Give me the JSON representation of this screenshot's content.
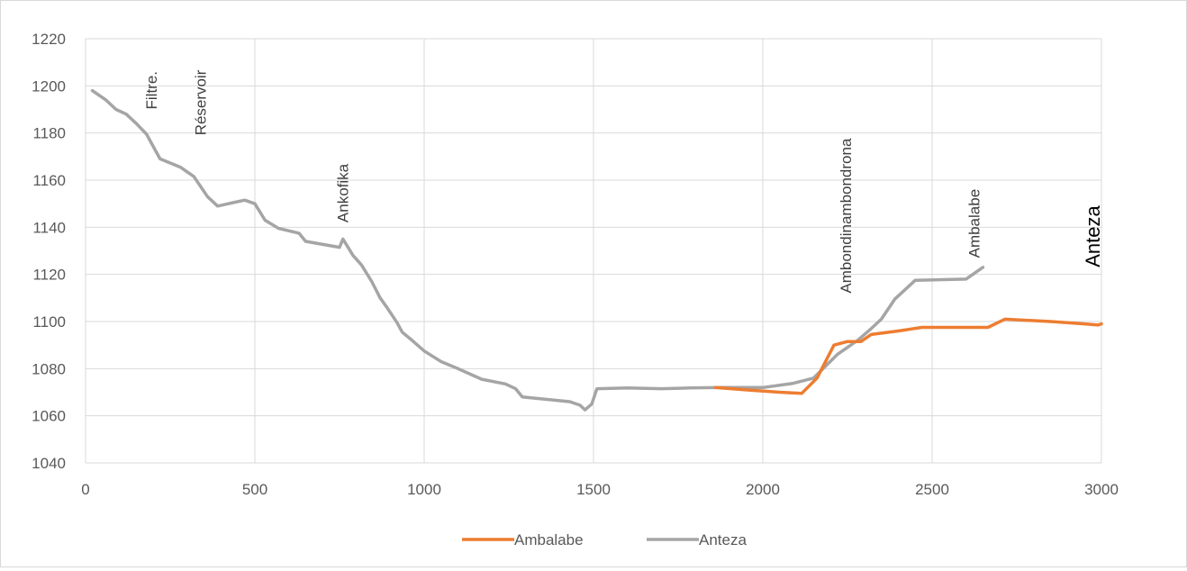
{
  "chart_data": {
    "type": "line",
    "title": "",
    "xlabel": "",
    "ylabel": "",
    "xlim": [
      0,
      3000
    ],
    "ylim": [
      1040,
      1220
    ],
    "x_ticks": [
      0,
      500,
      1000,
      1500,
      2000,
      2500,
      3000
    ],
    "y_ticks": [
      1040,
      1060,
      1080,
      1100,
      1120,
      1140,
      1160,
      1180,
      1200,
      1220
    ],
    "grid": true,
    "legend_position": "bottom-center",
    "series": [
      {
        "name": "Ambalabe",
        "color": "#ED7D31",
        "points": [
          [
            1860,
            1072
          ],
          [
            1950,
            1071
          ],
          [
            2050,
            1070
          ],
          [
            2115,
            1069.5
          ],
          [
            2160,
            1076
          ],
          [
            2210,
            1090
          ],
          [
            2250,
            1091.5
          ],
          [
            2290,
            1091.5
          ],
          [
            2320,
            1094.5
          ],
          [
            2400,
            1096
          ],
          [
            2470,
            1097.5
          ],
          [
            2560,
            1097.5
          ],
          [
            2665,
            1097.5
          ],
          [
            2715,
            1101
          ],
          [
            2850,
            1100
          ],
          [
            2950,
            1099
          ],
          [
            2990,
            1098.5
          ],
          [
            3000,
            1099
          ]
        ]
      },
      {
        "name": "Anteza",
        "color": "#A5A5A5",
        "points": [
          [
            20,
            1198
          ],
          [
            60,
            1194
          ],
          [
            90,
            1190
          ],
          [
            120,
            1188
          ],
          [
            150,
            1184
          ],
          [
            180,
            1179.5
          ],
          [
            220,
            1169
          ],
          [
            280,
            1165.5
          ],
          [
            320,
            1161.5
          ],
          [
            360,
            1153
          ],
          [
            390,
            1149
          ],
          [
            470,
            1151.5
          ],
          [
            500,
            1150
          ],
          [
            530,
            1143
          ],
          [
            570,
            1139.5
          ],
          [
            630,
            1137.5
          ],
          [
            650,
            1134
          ],
          [
            750,
            1131.5
          ],
          [
            760,
            1135
          ],
          [
            790,
            1128
          ],
          [
            815,
            1124
          ],
          [
            845,
            1117
          ],
          [
            870,
            1110
          ],
          [
            890,
            1106
          ],
          [
            920,
            1099.5
          ],
          [
            935,
            1095.5
          ],
          [
            960,
            1092.5
          ],
          [
            1000,
            1087.5
          ],
          [
            1050,
            1083
          ],
          [
            1100,
            1080
          ],
          [
            1170,
            1075.5
          ],
          [
            1240,
            1073.5
          ],
          [
            1270,
            1071.5
          ],
          [
            1290,
            1068
          ],
          [
            1430,
            1066
          ],
          [
            1460,
            1064.5
          ],
          [
            1475,
            1062.5
          ],
          [
            1495,
            1065
          ],
          [
            1510,
            1071.5
          ],
          [
            1600,
            1071.8
          ],
          [
            1700,
            1071.5
          ],
          [
            1780,
            1071.8
          ],
          [
            1880,
            1072
          ],
          [
            2000,
            1072
          ],
          [
            2090,
            1073.8
          ],
          [
            2150,
            1076
          ],
          [
            2220,
            1086
          ],
          [
            2280,
            1092
          ],
          [
            2320,
            1097
          ],
          [
            2350,
            1101
          ],
          [
            2390,
            1109.5
          ],
          [
            2420,
            1113.5
          ],
          [
            2450,
            1117.5
          ],
          [
            2600,
            1118
          ],
          [
            2650,
            1123
          ]
        ]
      }
    ],
    "annotations": [
      {
        "text": "Filtre.",
        "x": 210,
        "y": 1190,
        "rotated": true
      },
      {
        "text": "Réservoir",
        "x": 355,
        "y": 1179,
        "rotated": true
      },
      {
        "text": "Ankofika",
        "x": 775,
        "y": 1142,
        "rotated": true
      },
      {
        "text": "Ambondinambondrona",
        "x": 2260,
        "y": 1112,
        "rotated": true
      },
      {
        "text": "Ambalabe",
        "x": 2640,
        "y": 1127,
        "rotated": true
      },
      {
        "text": "Anteza",
        "x": 2995,
        "y": 1123,
        "rotated": true,
        "emphasis": true
      }
    ]
  }
}
